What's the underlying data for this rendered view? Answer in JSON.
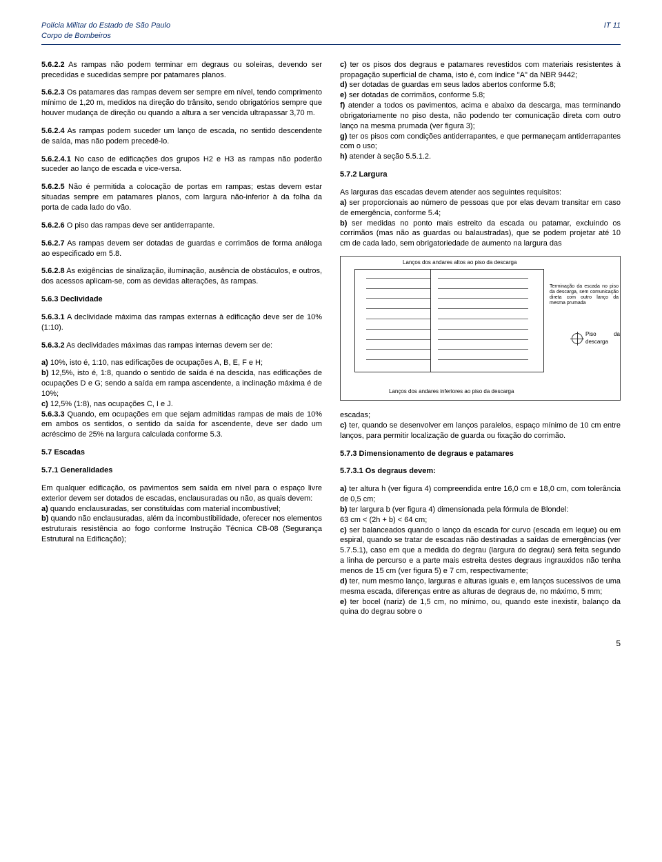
{
  "header": {
    "org1": "Polícia Militar do Estado de São Paulo",
    "org2": "Corpo de Bombeiros",
    "doc_code": "IT 11"
  },
  "left_column": [
    {
      "b": "5.6.2.2",
      "t": " As rampas não podem terminar em degraus ou soleiras, devendo ser precedidas e sucedidas sempre por patamares planos."
    },
    {
      "b": "5.6.2.3",
      "t": " Os patamares das rampas devem ser sempre em nível, tendo comprimento mínimo de 1,20 m, medidos na direção do trânsito, sendo obrigatórios sempre que houver mudança de direção ou quando a altura a ser vencida ultrapassar 3,70 m."
    },
    {
      "b": "5.6.2.4",
      "t": " As rampas podem suceder um lanço de escada, no sentido descendente de saída, mas não podem precedê-lo."
    },
    {
      "b": "5.6.2.4.1",
      "t": " No caso de edificações dos grupos H2 e H3 as rampas não poderão suceder ao lanço de escada e vice-versa."
    },
    {
      "b": "5.6.2.5",
      "t": " Não é permitida a colocação de portas em rampas; estas devem estar situadas sempre em patamares planos, com largura não-inferior à da folha da porta de cada lado do vão."
    },
    {
      "b": "5.6.2.6",
      "t": " O piso das rampas deve ser antiderrapante."
    },
    {
      "b": "5.6.2.7",
      "t": " As rampas devem ser dotadas de guardas e corrimãos de forma análoga ao especificado em 5.8."
    },
    {
      "b": "5.6.2.8",
      "t": " As exigências de sinalização, iluminação, ausência de obstáculos, e outros, dos acessos aplicam-se, com as devidas alterações, às rampas."
    },
    {
      "b": "5.6.3 Declividade",
      "t": "",
      "bold_all": true
    },
    {
      "b": "5.6.3.1",
      "t": " A declividade máxima das rampas externas à edificação deve ser de 10% (1:10)."
    },
    {
      "b": "5.6.3.2",
      "t": " As declividades máximas das rampas internas devem ser de:"
    },
    {
      "b": "a)",
      "t": " 10%, isto é, 1:10, nas edificações de ocupações A, B, E, F e H;",
      "no_gap": true
    },
    {
      "b": "b)",
      "t": " 12,5%, isto é, 1:8, quando o sentido de saída é na descida, nas edificações de ocupações D e G; sendo a saída em rampa ascendente, a inclinação máxima é de 10%;",
      "no_gap": true
    },
    {
      "b": "c)",
      "t": " 12,5% (1:8), nas ocupações C, I e J.",
      "no_gap": true
    },
    {
      "b": "5.6.3.3",
      "t": " Quando, em ocupações em que sejam admitidas rampas de mais de 10% em ambos os sentidos, o sentido da saída for ascendente, deve ser dado um acréscimo de 25% na largura calculada conforme 5.3."
    },
    {
      "b": "5.7 Escadas",
      "t": "",
      "bold_all": true
    },
    {
      "b": "5.7.1 Generalidades",
      "t": "",
      "bold_all": true
    },
    {
      "b": "",
      "t": "Em qualquer edificação, os pavimentos sem saída em nível para o espaço livre exterior devem ser dotados de escadas, enclausuradas ou não, as quais devem:",
      "no_gap": true
    },
    {
      "b": "a)",
      "t": " quando enclausuradas, ser constituídas com material incombustível;",
      "no_gap": true
    },
    {
      "b": "b)",
      "t": " quando não enclausuradas, além da incombustibilidade, oferecer nos elementos estruturais resistência ao fogo conforme Instrução Técnica CB-08 (Segurança Estrutural na Edificação);",
      "no_gap": true
    }
  ],
  "right_column_top": [
    {
      "b": "c)",
      "t": " ter os pisos dos degraus e patamares revestidos com materiais resistentes à propagação superficial de chama, isto é, com índice \"A\" da NBR 9442;",
      "no_gap": true
    },
    {
      "b": "d)",
      "t": " ser dotadas de guardas em seus lados abertos conforme 5.8;",
      "no_gap": true
    },
    {
      "b": "e)",
      "t": " ser dotadas de corrimãos, conforme 5.8;",
      "no_gap": true
    },
    {
      "b": "f)",
      "t": " atender a todos os pavimentos, acima e abaixo da descarga, mas terminando obrigatoriamente no piso desta, não podendo ter comunicação direta com outro lanço na mesma prumada (ver figura 3);",
      "no_gap": true
    },
    {
      "b": "g)",
      "t": " ter os pisos com condições antiderrapantes, e que permaneçam antiderrapantes com o uso;",
      "no_gap": true
    },
    {
      "b": "h)",
      "t": " atender à seção 5.5.1.2.",
      "no_gap": true
    },
    {
      "b": "5.7.2  Largura",
      "t": "",
      "bold_all": true
    },
    {
      "b": "",
      "t": "As larguras das escadas devem atender aos seguintes requisitos:",
      "no_gap": true
    },
    {
      "b": "a)",
      "t": " ser proporcionais ao número de pessoas que por elas devam transitar em caso de emergência, conforme 5.4;",
      "no_gap": true
    },
    {
      "b": "b)",
      "t": " ser medidas no ponto mais estreito da escada ou patamar, excluindo os corrimãos (mas não as guardas ou balaustradas), que se podem projetar até 10 cm de cada lado, sem obrigatoriedade de aumento na largura das",
      "no_gap": true
    }
  ],
  "figure": {
    "top_label": "Lanços dos andares altos ao piso da descarga",
    "side_label": "Terminação da escada no piso da descarga, sem comunicação direta com outro lanço da mesma prumada",
    "piso_label": "Piso da descarga",
    "bottom_label": "Lanços dos andares inferiores ao piso da descarga"
  },
  "right_column_bottom": [
    {
      "b": "",
      "t": "escadas;",
      "no_gap": true
    },
    {
      "b": "c)",
      "t": " ter, quando se desenvolver em lanços paralelos, espaço mínimo de 10 cm entre lanços, para permitir localização de guarda ou fixação do corrimão.",
      "no_gap": true
    },
    {
      "b": "5.7.3 Dimensionamento de degraus e patamares",
      "t": "",
      "bold_all": true
    },
    {
      "b": "5.7.3.1 Os degraus devem:",
      "t": "",
      "bold_all": true
    },
    {
      "b": "a)",
      "t": " ter altura h (ver figura 4) compreendida entre 16,0 cm e 18,0 cm, com tolerância de 0,5 cm;",
      "no_gap": true
    },
    {
      "b": "b)",
      "t": " ter largura b (ver figura 4) dimensionada pela fórmula de Blondel:",
      "no_gap": true
    },
    {
      "b": "",
      "t": "63 cm < (2h + b) < 64 cm;",
      "no_gap": true
    },
    {
      "b": "c)",
      "t": " ser balanceados quando o lanço da escada for curvo (escada em leque) ou em espiral, quando se tratar de escadas não destinadas a saídas de emergências (ver 5.7.5.1), caso em que a medida do degrau (largura do degrau) será feita segundo a linha de percurso e a parte mais estreita destes degraus ingrauxidos não tenha menos de 15 cm (ver figura 5) e 7 cm, respectivamente;",
      "no_gap": true
    },
    {
      "b": "d)",
      "t": " ter, num mesmo lanço, larguras e alturas iguais e, em lanços sucessivos de uma mesma escada, diferenças entre as alturas de degraus de, no máximo, 5 mm;",
      "no_gap": true
    },
    {
      "b": "e)",
      "t": " ter bocel (nariz) de 1,5 cm, no mínimo, ou, quando este inexistir, balanço da quina do degrau sobre o",
      "no_gap": true
    }
  ],
  "page_number": "5"
}
